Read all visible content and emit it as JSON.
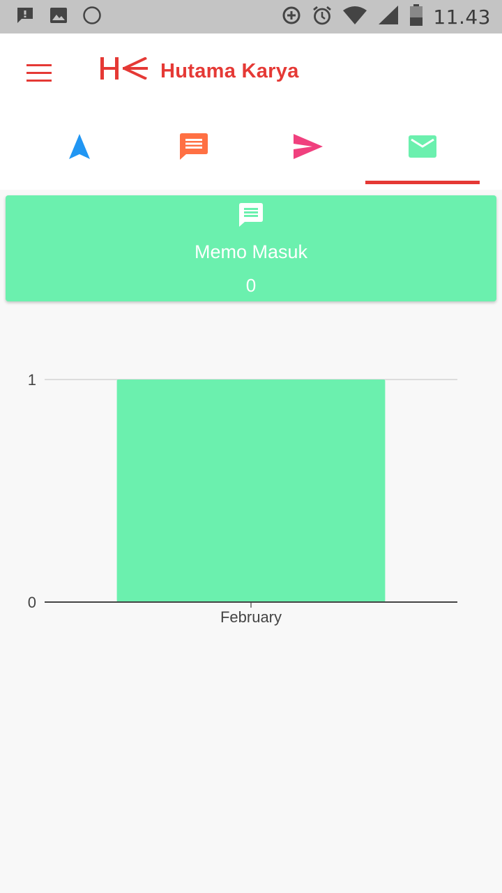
{
  "status_bar": {
    "time": "11.43",
    "icons": [
      "message-alert-icon",
      "image-icon",
      "circle-icon",
      "data-saver-icon",
      "alarm-icon",
      "wifi-icon",
      "signal-icon",
      "battery-icon"
    ]
  },
  "app_bar": {
    "menu_icon": "hamburger-menu-icon",
    "logo_icon": "hk-logo",
    "brand_name": "Hutama Karya",
    "accent_color": "#e53935"
  },
  "tabs": [
    {
      "icon": "navigation-arrow-icon",
      "color": "#2196f3",
      "selected": false
    },
    {
      "icon": "message-icon",
      "color": "#ff7043",
      "selected": false
    },
    {
      "icon": "send-icon",
      "color": "#f0407e",
      "selected": false
    },
    {
      "icon": "mail-icon",
      "color": "#6bf0ae",
      "selected": true
    }
  ],
  "memo_card": {
    "icon": "message-icon",
    "title": "Memo Masuk",
    "count": "0",
    "color": "#6bf0ae"
  },
  "chart_data": {
    "type": "bar",
    "categories": [
      "February"
    ],
    "values": [
      1
    ],
    "ylim": [
      0,
      1
    ],
    "ytick_labels": [
      "0",
      "1"
    ],
    "grid": true,
    "legend": "none",
    "bar_color": "#6bf0ae"
  }
}
